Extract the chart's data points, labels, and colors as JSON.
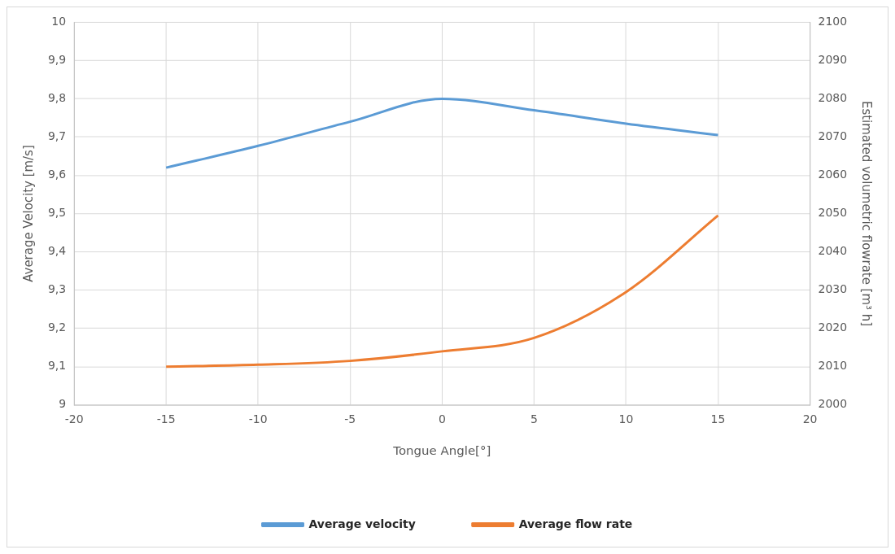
{
  "chart_data": {
    "type": "line",
    "xlabel": "Tongue Angle[°]",
    "ylabel": "Average Velocity [m/s]",
    "y2label": "Estimated volumetric flowrate [m³ h]",
    "xlim": [
      -20,
      20
    ],
    "xticks": [
      -20,
      -15,
      -10,
      -5,
      0,
      5,
      10,
      15,
      20
    ],
    "ylim": [
      9,
      10
    ],
    "yticks": [
      9,
      {
        "value": 9.1,
        "label": "9,1"
      },
      {
        "value": 9.2,
        "label": "9,2"
      },
      {
        "value": 9.3,
        "label": "9,3"
      },
      {
        "value": 9.4,
        "label": "9,4"
      },
      {
        "value": 9.5,
        "label": "9,5"
      },
      {
        "value": 9.6,
        "label": "9,6"
      },
      {
        "value": 9.7,
        "label": "9,7"
      },
      {
        "value": 9.8,
        "label": "9,8"
      },
      {
        "value": 9.9,
        "label": "9,9"
      },
      10
    ],
    "y2lim": [
      2000,
      2100
    ],
    "y2ticks": [
      2000,
      2010,
      2020,
      2030,
      2040,
      2050,
      2060,
      2070,
      2080,
      2090,
      2100
    ],
    "x": [
      -15,
      -10,
      -5,
      0,
      5,
      10,
      15
    ],
    "series": [
      {
        "name": "Average velocity",
        "color": "#5b9bd5",
        "values": [
          9.62,
          9.677,
          9.74,
          9.8,
          9.77,
          9.735,
          9.705
        ]
      },
      {
        "name": "Average flow rate",
        "color": "#ed7d31",
        "axis": "y2",
        "values": [
          2010,
          2010.5,
          2011.5,
          2014,
          2017.5,
          2029.5,
          2049.5
        ]
      }
    ],
    "grid": true,
    "legend": "bottom",
    "marker": "none",
    "line_style": "solid"
  }
}
